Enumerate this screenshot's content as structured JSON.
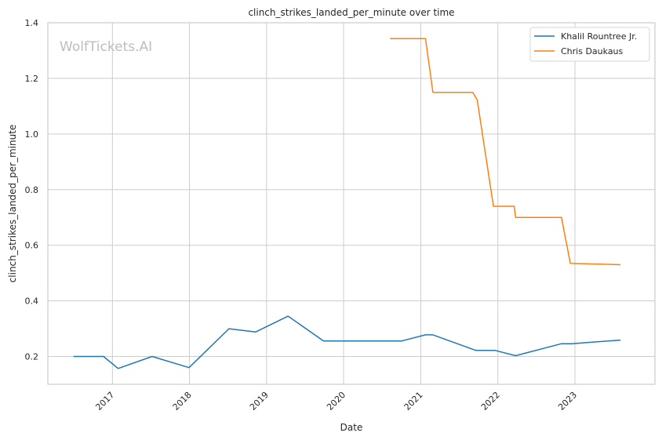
{
  "chart_data": {
    "type": "line",
    "title": "clinch_strikes_landed_per_minute over time",
    "xlabel": "Date",
    "ylabel": "clinch_strikes_landed_per_minute",
    "watermark": "WolfTickets.AI",
    "xlim": [
      "2016-03-01",
      "2024-01-15"
    ],
    "ylim": [
      0.1,
      1.4
    ],
    "x_ticks": [
      "2017-01-01",
      "2018-01-01",
      "2019-01-01",
      "2020-01-01",
      "2021-01-01",
      "2022-01-01",
      "2023-01-01"
    ],
    "x_tick_labels": [
      "2017",
      "2018",
      "2019",
      "2020",
      "2021",
      "2022",
      "2023"
    ],
    "y_ticks": [
      0.2,
      0.4,
      0.6,
      0.8,
      1.0,
      1.2,
      1.4
    ],
    "y_tick_labels": [
      "0.2",
      "0.4",
      "0.6",
      "0.8",
      "1.0",
      "1.2",
      "1.4"
    ],
    "grid": true,
    "legend_position": "top-right",
    "series": [
      {
        "name": "Khalil Rountree Jr.",
        "color": "#1f77b4",
        "points": [
          [
            "2016-07-01",
            0.2
          ],
          [
            "2016-11-20",
            0.2
          ],
          [
            "2017-01-28",
            0.157
          ],
          [
            "2017-07-08",
            0.2
          ],
          [
            "2017-12-30",
            0.16
          ],
          [
            "2018-07-07",
            0.3
          ],
          [
            "2018-11-10",
            0.288
          ],
          [
            "2019-04-13",
            0.345
          ],
          [
            "2019-09-28",
            0.256
          ],
          [
            "2020-10-03",
            0.256
          ],
          [
            "2021-01-23",
            0.278
          ],
          [
            "2021-02-27",
            0.278
          ],
          [
            "2021-09-18",
            0.222
          ],
          [
            "2021-12-18",
            0.222
          ],
          [
            "2022-03-26",
            0.203
          ],
          [
            "2022-10-29",
            0.246
          ],
          [
            "2022-12-17",
            0.246
          ],
          [
            "2023-08-05",
            0.259
          ]
        ]
      },
      {
        "name": "Chris Daukaus",
        "color": "#ff7f0e",
        "points": [
          [
            "2020-08-08",
            1.343
          ],
          [
            "2021-01-23",
            1.343
          ],
          [
            "2021-02-27",
            1.15
          ],
          [
            "2021-09-04",
            1.15
          ],
          [
            "2021-09-25",
            1.123
          ],
          [
            "2021-12-11",
            0.74
          ],
          [
            "2022-03-19",
            0.74
          ],
          [
            "2022-03-26",
            0.7
          ],
          [
            "2022-10-29",
            0.7
          ],
          [
            "2022-12-10",
            0.535
          ],
          [
            "2023-08-05",
            0.53
          ]
        ]
      }
    ]
  }
}
